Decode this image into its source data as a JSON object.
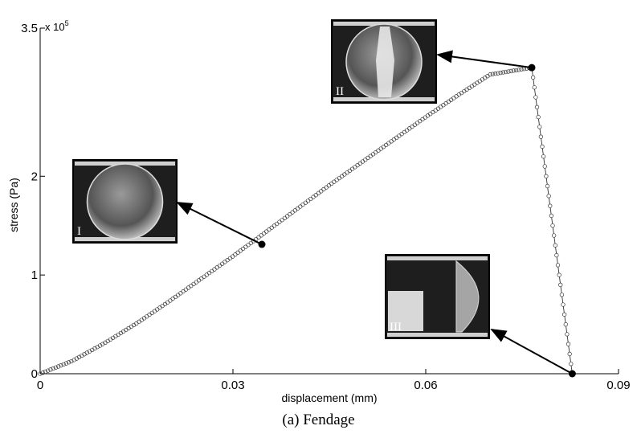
{
  "chart_data": {
    "type": "line",
    "xlabel": "displacement (mm)",
    "ylabel": "stress (Pa)",
    "y_multiplier_label": "x 10",
    "y_multiplier_exponent": "5",
    "xlim": [
      0,
      0.09
    ],
    "ylim": [
      0,
      350000
    ],
    "x_ticks": [
      0,
      0.03,
      0.06,
      0.09
    ],
    "x_tick_labels": [
      "0",
      "0.03",
      "0.06",
      "0.09"
    ],
    "y_ticks": [
      0,
      100000,
      200000,
      350000
    ],
    "y_tick_labels": [
      "0",
      "1",
      "2",
      "3.5"
    ],
    "series": [
      {
        "marker": "open-circle",
        "color": "#333333",
        "rising_points": [
          [
            0,
            0
          ],
          [
            0.005,
            13000
          ],
          [
            0.01,
            31000
          ],
          [
            0.015,
            51000
          ],
          [
            0.02,
            73000
          ],
          [
            0.025,
            96000
          ],
          [
            0.03,
            119000
          ],
          [
            0.035,
            143000
          ],
          [
            0.04,
            167000
          ],
          [
            0.045,
            191000
          ],
          [
            0.05,
            214000
          ],
          [
            0.055,
            237000
          ],
          [
            0.06,
            260000
          ],
          [
            0.065,
            282000
          ],
          [
            0.07,
            303000
          ],
          [
            0.0765,
            310000
          ]
        ],
        "rising_marker_count": 190,
        "falling_points": [
          [
            0.0765,
            310000
          ],
          [
            0.0828,
            0
          ]
        ],
        "falling_marker_count": 32
      }
    ],
    "highlighted_points": [
      {
        "label": "I",
        "x": 0.0345,
        "y": 131000
      },
      {
        "label": "II",
        "x": 0.0765,
        "y": 310000
      },
      {
        "label": "III",
        "x": 0.0828,
        "y": 0
      }
    ],
    "grid": false
  },
  "insets": [
    {
      "label": "I",
      "description": "intact disk"
    },
    {
      "label": "II",
      "description": "cracked disk"
    },
    {
      "label": "III",
      "description": "split disk"
    }
  ],
  "caption": "(a) Fendage"
}
